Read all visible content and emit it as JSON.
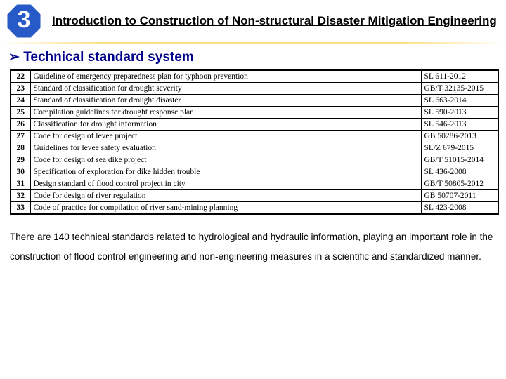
{
  "badge": {
    "number": "3",
    "fill": "#2759c7"
  },
  "title": "Introduction to Construction of Non-structural Disaster Mitigation Engineering",
  "section_heading": "➢ Technical standard system",
  "table": {
    "rows": [
      {
        "num": "22",
        "name": "Guideline of emergency preparedness plan for typhoon prevention",
        "code": "SL 611-2012"
      },
      {
        "num": "23",
        "name": "Standard of classification for drought severity",
        "code": "GB/T 32135-2015"
      },
      {
        "num": "24",
        "name": "Standard of classification for drought disaster",
        "code": "SL 663-2014"
      },
      {
        "num": "25",
        "name": "Compilation guidelines for drought response plan",
        "code": "SL 590-2013"
      },
      {
        "num": "26",
        "name": "Classification for drought information",
        "code": "SL 546-2013"
      },
      {
        "num": "27",
        "name": "Code for design of levee project",
        "code": "GB 50286-2013"
      },
      {
        "num": "28",
        "name": "Guidelines for levee safety evaluation",
        "code": "SL/Z 679-2015"
      },
      {
        "num": "29",
        "name": "Code for design of sea dike project",
        "code": "GB/T 51015-2014"
      },
      {
        "num": "30",
        "name": "Specification of exploration for dike hidden trouble",
        "code": "SL 436-2008"
      },
      {
        "num": "31",
        "name": "Design standard of flood control project in city",
        "code": "GB/T 50805-2012"
      },
      {
        "num": "32",
        "name": "Code for design of river regulation",
        "code": "GB 50707-2011"
      },
      {
        "num": "33",
        "name": "Code of practice for compilation of river sand-mining planning",
        "code": "SL 423-2008"
      }
    ]
  },
  "body_text": "There are 140 technical standards related to hydrological and hydraulic information, playing an important role in the construction of flood control engineering and non-engineering measures in a scientific and standardized manner."
}
